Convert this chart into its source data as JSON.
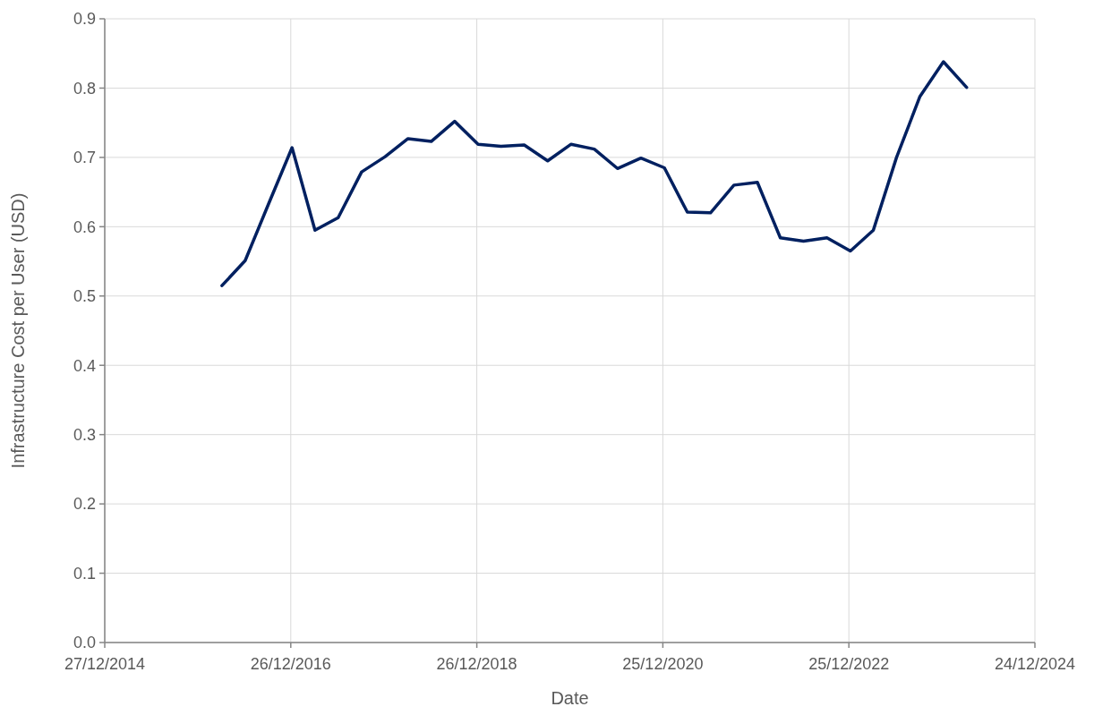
{
  "chart_data": {
    "type": "line",
    "xlabel": "Date",
    "ylabel": "Infrastructure Cost per User (USD)",
    "x": [
      "2016-03-31",
      "2016-06-30",
      "2016-09-30",
      "2016-12-31",
      "2017-03-31",
      "2017-06-30",
      "2017-09-30",
      "2017-12-31",
      "2018-03-31",
      "2018-06-30",
      "2018-09-30",
      "2018-12-31",
      "2019-03-31",
      "2019-06-30",
      "2019-09-30",
      "2019-12-31",
      "2020-03-31",
      "2020-06-30",
      "2020-09-30",
      "2020-12-31",
      "2021-03-31",
      "2021-06-30",
      "2021-09-30",
      "2021-12-31",
      "2022-03-31",
      "2022-06-30",
      "2022-09-30",
      "2022-12-31",
      "2023-03-31",
      "2023-06-30",
      "2023-09-30",
      "2023-12-31",
      "2024-03-31"
    ],
    "series": [
      {
        "color": "#002060",
        "values": [
          0.515,
          0.551,
          0.633,
          0.714,
          0.595,
          0.613,
          0.679,
          0.701,
          0.727,
          0.723,
          0.752,
          0.719,
          0.716,
          0.718,
          0.695,
          0.719,
          0.712,
          0.684,
          0.699,
          0.685,
          0.621,
          0.62,
          0.66,
          0.664,
          0.584,
          0.579,
          0.584,
          0.565,
          0.595,
          0.7,
          0.788,
          0.838,
          0.801
        ]
      }
    ],
    "xlim": [
      "2014-12-27",
      "2024-12-24"
    ],
    "xticks": [
      {
        "value": "2014-12-27",
        "label": "27/12/2014"
      },
      {
        "value": "2016-12-26",
        "label": "26/12/2016"
      },
      {
        "value": "2018-12-26",
        "label": "26/12/2018"
      },
      {
        "value": "2020-12-25",
        "label": "25/12/2020"
      },
      {
        "value": "2022-12-25",
        "label": "25/12/2022"
      },
      {
        "value": "2024-12-24",
        "label": "24/12/2024"
      }
    ],
    "ylim": [
      0,
      0.9
    ],
    "yticks": [
      {
        "value": 0,
        "label": "0.0"
      },
      0.1,
      0.2,
      0.3,
      0.4,
      0.5,
      0.6,
      0.7,
      0.8,
      0.9
    ],
    "grid": true,
    "marker": "none",
    "line_style": "solid"
  }
}
